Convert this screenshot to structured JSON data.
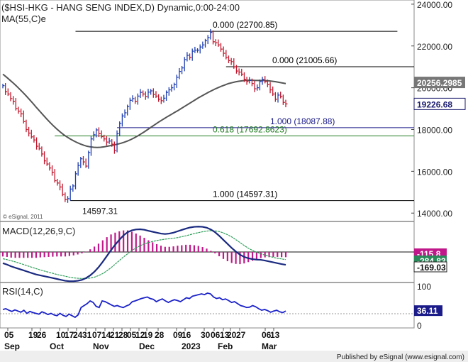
{
  "chart_data": [
    {
      "type": "line",
      "panel": "price",
      "title": "($HSI-HKG - HANG SENG INDEX,D) Dynamic,0:00-24:00",
      "indicator_label": "MA(55,C)e",
      "watermark": "© eSignal, 2011",
      "ylim": [
        13600,
        24200
      ],
      "y_ticks": [
        {
          "value": 24000,
          "label": "24000.00"
        },
        {
          "value": 22000,
          "label": "22000.00"
        },
        {
          "value": 20000,
          "label": "20000.00"
        },
        {
          "value": 18000,
          "label": "18000.00"
        },
        {
          "value": 16000,
          "label": "16000.00"
        },
        {
          "value": 14000,
          "label": "14000.00"
        }
      ],
      "last_price": {
        "value": 19226.68,
        "label": "19226.68",
        "color": "#1b1b6e"
      },
      "ma_value": {
        "value": 20256.2985,
        "label": "20256.2985",
        "color": "#ffffff"
      },
      "series": [
        {
          "name": "HSI close",
          "style": "hlc_bars",
          "colors": {
            "up": "#1f3fb0",
            "down": "#c0182d"
          },
          "values": [
            20100,
            19810,
            19700,
            19480,
            19350,
            19000,
            18880,
            18750,
            18380,
            18000,
            17830,
            17650,
            17500,
            17200,
            17100,
            16830,
            16500,
            16350,
            16160,
            15950,
            15550,
            15440,
            15250,
            14900,
            14650,
            14690,
            15150,
            15300,
            15880,
            16280,
            16600,
            16450,
            16250,
            16900,
            17550,
            17750,
            17980,
            17800,
            17660,
            17550,
            17400,
            17450,
            17300,
            17000,
            17800,
            18300,
            18650,
            18800,
            19100,
            19400,
            19480,
            19350,
            19600,
            19780,
            19700,
            19580,
            19790,
            19850,
            19680,
            19600,
            19450,
            19380,
            19500,
            19780,
            19900,
            20000,
            20150,
            20500,
            20780,
            20950,
            21350,
            21550,
            21450,
            21750,
            21800,
            21800,
            21950,
            22050,
            22250,
            22400,
            22650,
            22200,
            22150,
            22050,
            21850,
            21650,
            21450,
            21300,
            21250,
            21000,
            20800,
            20750,
            20650,
            20400,
            20300,
            20350,
            20200,
            19950,
            20000,
            20300,
            20400,
            20300,
            20150,
            19900,
            19700,
            19450,
            19650,
            19580,
            19300,
            19226.68
          ]
        },
        {
          "name": "MA(55,C)e",
          "color": "#555555",
          "values": [
            20650,
            20520,
            20380,
            20240,
            20090,
            19930,
            19770,
            19600,
            19420,
            19240,
            19050,
            18870,
            18690,
            18510,
            18340,
            18180,
            18030,
            17890,
            17760,
            17650,
            17550,
            17460,
            17380,
            17310,
            17250,
            17200,
            17170,
            17150,
            17140,
            17150,
            17170,
            17200,
            17230,
            17260,
            17300,
            17340,
            17390,
            17450,
            17520,
            17600,
            17690,
            17790,
            17890,
            18000,
            18110,
            18220,
            18330,
            18430,
            18530,
            18630,
            18720,
            18820,
            18910,
            19010,
            19110,
            19210,
            19310,
            19410,
            19510,
            19600,
            19690,
            19780,
            19860,
            19940,
            20010,
            20080,
            20140,
            20200,
            20240,
            20280,
            20310,
            20330,
            20350,
            20360,
            20360,
            20350,
            20350,
            20350,
            20340,
            20330,
            20310,
            20290,
            20260,
            20230,
            20200
          ]
        }
      ],
      "levels": [
        {
          "label": "0.000 (22700.85)",
          "value": 22700.85,
          "color": "#000000"
        },
        {
          "label": "0.000 (21005.66)",
          "value": 21005.66,
          "color": "#000000"
        },
        {
          "label": "1.000 (18087.88)",
          "value": 18087.88,
          "color": "#1b1b8a"
        },
        {
          "label": "0.618 (17692.8623)",
          "value": 17692.8623,
          "color": "#1d7a1d"
        },
        {
          "label": "1.000 (14597.31)",
          "value": 14597.31,
          "color": "#000000"
        }
      ],
      "annotations": [
        {
          "text": "14597.31",
          "value": 14597.31
        }
      ]
    },
    {
      "type": "line",
      "panel": "macd",
      "title": "MACD(12,26,9,C)",
      "value_labels": [
        {
          "label": "-115.8",
          "color": "#c0188a"
        },
        {
          "label": "-284.83",
          "color": "#2a8a5a"
        },
        {
          "label": "-169.03",
          "color": "#1a1a1a"
        }
      ],
      "series": [
        {
          "name": "MACD",
          "color": "#1a2a80",
          "values": [
            -250,
            -280,
            -320,
            -350,
            -380,
            -410,
            -440,
            -470,
            -500,
            -520,
            -540,
            -560,
            -580,
            -600,
            -620,
            -640,
            -650,
            -650,
            -640,
            -620,
            -580,
            -520,
            -440,
            -340,
            -220,
            -90,
            40,
            160,
            270,
            370,
            440,
            480,
            500,
            505,
            495,
            470,
            450,
            430,
            410,
            400,
            410,
            430,
            460,
            490,
            520,
            545,
            560,
            565,
            560,
            540,
            500,
            440,
            360,
            270,
            180,
            90,
            10,
            -60,
            -110,
            -140,
            -160,
            -170,
            -175,
            -190,
            -210,
            -230,
            -250,
            -270,
            -285
          ]
        },
        {
          "name": "Signal",
          "color": "#2e9e5a",
          "values": [
            -150,
            -170,
            -195,
            -220,
            -250,
            -280,
            -310,
            -340,
            -370,
            -400,
            -425,
            -450,
            -475,
            -500,
            -520,
            -540,
            -560,
            -575,
            -585,
            -590,
            -590,
            -580,
            -560,
            -525,
            -480,
            -420,
            -350,
            -270,
            -190,
            -110,
            -40,
            30,
            90,
            140,
            180,
            210,
            235,
            255,
            270,
            285,
            295,
            305,
            320,
            340,
            360,
            385,
            410,
            430,
            450,
            465,
            475,
            470,
            455,
            425,
            385,
            335,
            275,
            210,
            145,
            85,
            35,
            -5,
            -40,
            -70,
            -95,
            -120,
            -140,
            -155,
            -169.03
          ]
        },
        {
          "name": "Histogram",
          "color": "#c0188a",
          "values": [
            -100,
            -110,
            -125,
            -130,
            -130,
            -130,
            -130,
            -130,
            -130,
            -120,
            -115,
            -110,
            -105,
            -100,
            -100,
            -100,
            -90,
            -75,
            -55,
            -30,
            10,
            60,
            120,
            185,
            260,
            330,
            390,
            430,
            460,
            480,
            480,
            450,
            410,
            365,
            315,
            260,
            215,
            175,
            140,
            115,
            115,
            125,
            140,
            150,
            160,
            160,
            150,
            135,
            110,
            75,
            25,
            -30,
            -95,
            -155,
            -205,
            -245,
            -265,
            -270,
            -255,
            -225,
            -195,
            -165,
            -135,
            -120,
            -115,
            -110,
            -110,
            -115,
            -115.8
          ]
        }
      ]
    },
    {
      "type": "line",
      "panel": "rsi",
      "title": "RSI(14,C)",
      "ylim": [
        0,
        100
      ],
      "y_ticks": [
        {
          "value": 100,
          "label": "100"
        },
        {
          "value": 0,
          "label": "0"
        }
      ],
      "value_labels": [
        {
          "label": "36.11",
          "color": "#1b1b8a"
        }
      ],
      "series": [
        {
          "name": "RSI",
          "color": "#1b22c8",
          "values": [
            40,
            42,
            38,
            35,
            39,
            36,
            33,
            38,
            30,
            35,
            32,
            30,
            28,
            34,
            31,
            27,
            30,
            26,
            24,
            30,
            25,
            22,
            28,
            24,
            20,
            26,
            45,
            50,
            55,
            62,
            58,
            48,
            45,
            62,
            60,
            56,
            52,
            48,
            50,
            47,
            45,
            49,
            52,
            60,
            62,
            65,
            68,
            70,
            72,
            68,
            66,
            60,
            64,
            67,
            62,
            58,
            62,
            65,
            63,
            60,
            65,
            70,
            68,
            74,
            76,
            78,
            80,
            78,
            82,
            80,
            72,
            68,
            70,
            65,
            67,
            63,
            58,
            60,
            55,
            50,
            48,
            45,
            46,
            50,
            47,
            42,
            38,
            40,
            37,
            33,
            36,
            38,
            34,
            32,
            36.11
          ]
        }
      ]
    }
  ],
  "x_axis": {
    "day_labels": [
      "05",
      "19",
      "26",
      "10",
      "17",
      "24",
      "31",
      "07",
      "14",
      "21",
      "28",
      "05",
      "12",
      "19",
      "28",
      "09",
      "16",
      "30",
      "06",
      "13",
      "20",
      "27",
      "06",
      "13"
    ],
    "month_labels": [
      "Sep",
      "Oct",
      "Nov",
      "Dec",
      "2023",
      "Feb",
      "Mar"
    ]
  },
  "footer": {
    "text": "Published by eSignal (www.esignal.com)"
  }
}
